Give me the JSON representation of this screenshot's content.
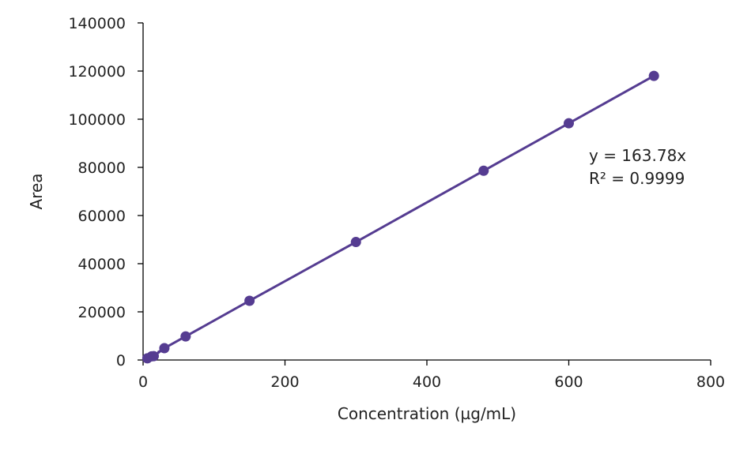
{
  "chart_data": {
    "type": "scatter",
    "title": "",
    "xlabel": "Concentration (µg/mL)",
    "ylabel": "Area",
    "xlim": [
      0,
      800
    ],
    "ylim": [
      0,
      140000
    ],
    "x_ticks": [
      "0",
      "200",
      "400",
      "600",
      "800"
    ],
    "y_ticks": [
      "0",
      "20000",
      "40000",
      "60000",
      "80000",
      "100000",
      "120000",
      "140000"
    ],
    "grid": false,
    "legend": "none",
    "series": [
      {
        "x": [
          6,
          12,
          15,
          30,
          60,
          150,
          300,
          480,
          600,
          720
        ],
        "y": [
          700,
          1500,
          1600,
          4900,
          9800,
          24600,
          49000,
          78600,
          98300,
          118000
        ]
      }
    ],
    "trendline": {
      "type": "linear",
      "slope": 163.78,
      "intercept": 0,
      "x_range": [
        0,
        720
      ]
    },
    "annotations": [
      "y = 163.78x",
      "R² = 0.9999"
    ],
    "colors": {
      "series": "#553c91",
      "axis": "#000000"
    }
  }
}
